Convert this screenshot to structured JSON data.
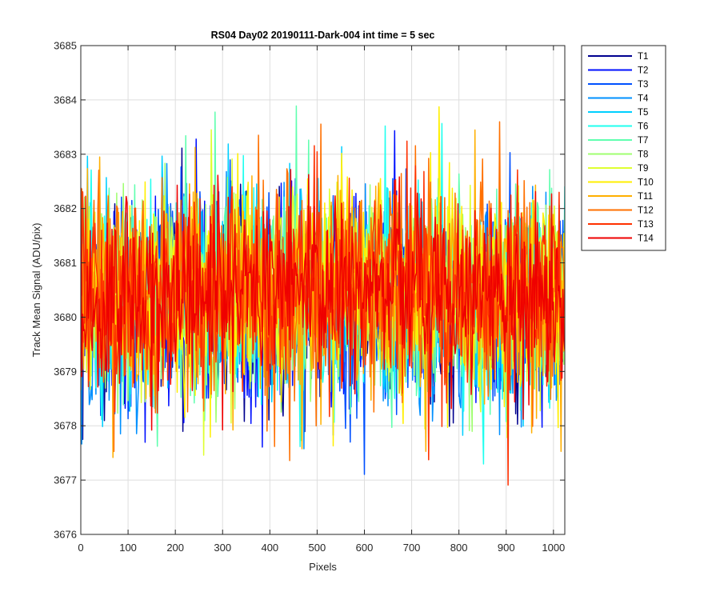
{
  "chart_data": {
    "type": "line",
    "title": "RS04 Day02 20190111-Dark-004 int time = 5 sec",
    "xlabel": "Pixels",
    "ylabel": "Track Mean Signal (ADU/pix)",
    "xlim": [
      0,
      1024
    ],
    "ylim": [
      3676,
      3685
    ],
    "x_ticks": [
      0,
      100,
      200,
      300,
      400,
      500,
      600,
      700,
      800,
      900,
      1000
    ],
    "y_ticks": [
      3676,
      3677,
      3678,
      3679,
      3680,
      3681,
      3682,
      3683,
      3684,
      3685
    ],
    "x_tick_labels": [
      "0",
      "100",
      "200",
      "300",
      "400",
      "500",
      "600",
      "700",
      "800",
      "900",
      "1000"
    ],
    "y_tick_labels": [
      "3676",
      "3677",
      "3678",
      "3679",
      "3680",
      "3681",
      "3682",
      "3683",
      "3684",
      "3685"
    ],
    "grid": true,
    "legend_position": "outside-top-right",
    "series": [
      {
        "name": "T1",
        "color": "#00008f",
        "mean": 3680.3,
        "amplitude": 1.0
      },
      {
        "name": "T2",
        "color": "#0010ff",
        "mean": 3680.3,
        "amplitude": 1.0
      },
      {
        "name": "T3",
        "color": "#0050ff",
        "mean": 3680.35,
        "amplitude": 1.0
      },
      {
        "name": "T4",
        "color": "#0090ff",
        "mean": 3680.35,
        "amplitude": 1.0
      },
      {
        "name": "T5",
        "color": "#00cfff",
        "mean": 3680.4,
        "amplitude": 1.0
      },
      {
        "name": "T6",
        "color": "#20ffef",
        "mean": 3680.4,
        "amplitude": 1.0
      },
      {
        "name": "T7",
        "color": "#60ffaf",
        "mean": 3680.45,
        "amplitude": 1.0
      },
      {
        "name": "T8",
        "color": "#9fff70",
        "mean": 3680.45,
        "amplitude": 1.0
      },
      {
        "name": "T9",
        "color": "#dfff30",
        "mean": 3680.5,
        "amplitude": 1.0
      },
      {
        "name": "T10",
        "color": "#ffef00",
        "mean": 3680.5,
        "amplitude": 1.0
      },
      {
        "name": "T11",
        "color": "#ffaf00",
        "mean": 3680.55,
        "amplitude": 1.0
      },
      {
        "name": "T12",
        "color": "#ff7000",
        "mean": 3680.55,
        "amplitude": 1.0
      },
      {
        "name": "T13",
        "color": "#ff3000",
        "mean": 3680.55,
        "amplitude": 1.0
      },
      {
        "name": "T14",
        "color": "#ef0000",
        "mean": 3680.55,
        "amplitude": 0.9
      }
    ],
    "note_values": {
      "min_observed": 3676.5,
      "max_observed": 3684.5
    }
  }
}
